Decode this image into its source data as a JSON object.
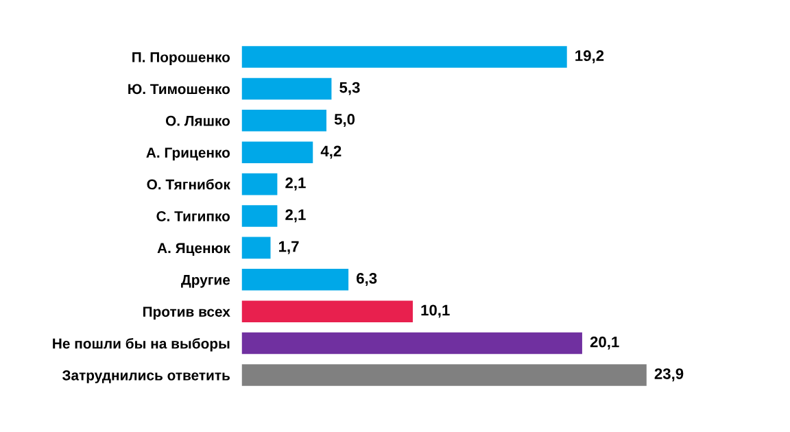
{
  "chart_data": {
    "type": "bar",
    "orientation": "horizontal",
    "value_labels": [
      "19,2",
      "5,3",
      "5,0",
      "4,2",
      "2,1",
      "2,1",
      "1,7",
      "6,3",
      "10,1",
      "20,1",
      "23,9"
    ],
    "grid": false,
    "legend": false,
    "categories": [
      "П. Порошенко",
      "Ю. Тимошенко",
      "О. Ляшко",
      "А. Гриценко",
      "О. Тягнибок",
      "С. Тигипко",
      "А. Яценюк",
      "Другие",
      "Против всех",
      "Не пошли бы на выборы",
      "Затруднились ответить"
    ],
    "values": [
      19.2,
      5.3,
      5.0,
      4.2,
      2.1,
      2.1,
      1.7,
      6.3,
      10.1,
      20.1,
      23.9
    ],
    "colors": [
      "#00a8e8",
      "#00a8e8",
      "#00a8e8",
      "#00a8e8",
      "#00a8e8",
      "#00a8e8",
      "#00a8e8",
      "#00a8e8",
      "#e8204e",
      "#7030a0",
      "#808080"
    ]
  }
}
